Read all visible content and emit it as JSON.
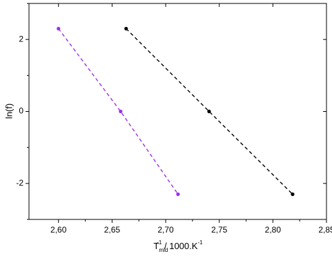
{
  "chart_data": {
    "type": "scatter",
    "xlabel": {
      "base": "T",
      "sub": "mid",
      "sup": "-1",
      "rest": " / 1000.K",
      "unit_sup": "-1"
    },
    "ylabel": "ln(f)",
    "xlim": [
      2.5725,
      2.85
    ],
    "ylim": [
      -3,
      3
    ],
    "xticks": [
      {
        "value": 2.6,
        "label": "2,60"
      },
      {
        "value": 2.65,
        "label": "2,65"
      },
      {
        "value": 2.7,
        "label": "2,70"
      },
      {
        "value": 2.75,
        "label": "2,75"
      },
      {
        "value": 2.8,
        "label": "2,80"
      },
      {
        "value": 2.85,
        "label": "2,85"
      }
    ],
    "yticks": [
      -2,
      0,
      2
    ],
    "series": [
      {
        "color": "#9b30e8",
        "x": [
          2.6,
          2.658,
          2.7115
        ],
        "values": [
          2.3,
          0,
          -2.3
        ]
      },
      {
        "color": "#000000",
        "x": [
          2.6631,
          2.7405,
          2.8184
        ],
        "values": [
          2.3,
          0,
          -2.3
        ]
      }
    ]
  }
}
